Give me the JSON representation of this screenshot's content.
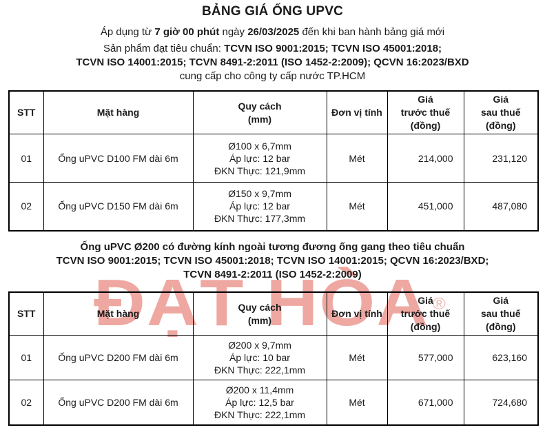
{
  "header": {
    "title": "BẢNG GIÁ ỐNG UPVC",
    "apply_line": {
      "pre": "Áp dụng từ ",
      "time_bold": "7 giờ 00 phút",
      "mid": " ngày ",
      "date_bold": "26/03/2025",
      "post": " đến khi ban hành bảng giá mới"
    },
    "standards_prefix": "Sản phẩm đạt tiêu chuẩn: ",
    "standards_bold_1": "TCVN ISO 9001:2015; TCVN ISO 45001:2018;",
    "standards_bold_2": "TCVN ISO 14001:2015; TCVN 8491-2:2011 (ISO 1452-2:2009); QCVN 16:2023/BXD",
    "supply_line": "cung cấp cho công ty cấp nước TP.HCM"
  },
  "table1": {
    "columns": {
      "stt": "STT",
      "item": "Mặt hàng",
      "spec": [
        "Quy cách",
        "(mm)"
      ],
      "unit": "Đơn vị tính",
      "price_before": [
        "Giá",
        "trước thuế",
        "(đồng)"
      ],
      "price_after": [
        "Giá",
        "sau thuế",
        "(đồng)"
      ]
    },
    "rows": [
      {
        "stt": "01",
        "item": "Ống uPVC D100 FM dài 6m",
        "spec": [
          "Ø100 x 6,7mm",
          "Áp lực: 12 bar",
          "ĐKN Thực: 121,9mm"
        ],
        "unit": "Mét",
        "price_before": "214,000",
        "price_after": "231,120"
      },
      {
        "stt": "02",
        "item": "Ống uPVC D150 FM dài 6m",
        "spec": [
          "Ø150 x 9,7mm",
          "Áp lực: 12 bar",
          "ĐKN Thực: 177,3mm"
        ],
        "unit": "Mét",
        "price_before": "451,000",
        "price_after": "487,080"
      }
    ]
  },
  "section2": {
    "heading_lines": [
      "Ống uPVC Ø200 có đường kính ngoài tương đương ống gang theo tiêu chuẩn",
      "TCVN ISO 9001:2015; TCVN ISO 45001:2018; TCVN ISO 14001:2015; QCVN 16:2023/BXD;",
      "TCVN 8491-2:2011 (ISO 1452-2:2009)"
    ]
  },
  "table2": {
    "columns": {
      "stt": "STT",
      "item": "Mặt hàng",
      "spec": [
        "Quy cách",
        "(mm)"
      ],
      "unit": "Đơn vị tính",
      "price_before": [
        "Giá",
        "trước thuế",
        "(đồng)"
      ],
      "price_after": [
        "Giá",
        "sau thuế",
        "(đồng)"
      ]
    },
    "rows": [
      {
        "stt": "01",
        "item": "Ống uPVC D200 FM dài 6m",
        "spec": [
          "Ø200 x 9,7mm",
          "Áp lực: 10 bar",
          "ĐKN Thực: 222,1mm"
        ],
        "unit": "Mét",
        "price_before": "577,000",
        "price_after": "623,160"
      },
      {
        "stt": "02",
        "item": "Ống uPVC D200 FM dài 6m",
        "spec": [
          "Ø200 x 11,4mm",
          "Áp lực: 12,5 bar",
          "ĐKN Thực: 222,1mm"
        ],
        "unit": "Mét",
        "price_before": "671,000",
        "price_after": "724,680"
      }
    ]
  },
  "watermark": {
    "text": "ĐẠT HÒA",
    "registered": "®",
    "color": "#dc4a3d"
  }
}
